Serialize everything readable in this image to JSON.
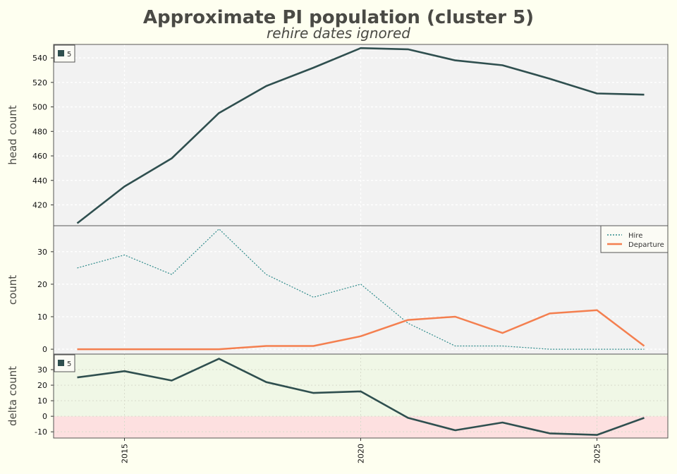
{
  "chart_data": {
    "title": "Approximate PI population (cluster 5)",
    "subtitle": "rehire dates ignored",
    "x": [
      2014,
      2015,
      2016,
      2017,
      2018,
      2019,
      2020,
      2021,
      2022,
      2023,
      2024,
      2025,
      2026
    ],
    "x_ticks": [
      "2015",
      "2020",
      "2025"
    ],
    "xlim": [
      2013.5,
      2026.5
    ],
    "colors": {
      "headcount": "#2f4f4f",
      "hire": "#2e8b8b",
      "departure": "#f47f4f",
      "delta_positive_bg": "#f0f7e6",
      "delta_negative_bg": "#fde0e0",
      "panel_bg": "#f2f2f2",
      "page_bg": "#fefff0"
    },
    "panels": [
      {
        "type": "line",
        "ylabel": "head count",
        "ylim": [
          403,
          551
        ],
        "yticks": [
          420,
          440,
          460,
          480,
          500,
          520,
          540
        ],
        "legend": {
          "position": "top-left",
          "entries": [
            "5"
          ]
        },
        "series": [
          {
            "name": "5",
            "style": "solid",
            "values": [
              405,
              435,
              458,
              495,
              517,
              532,
              548,
              547,
              538,
              534,
              523,
              511,
              510
            ]
          }
        ]
      },
      {
        "type": "line",
        "ylabel": "count",
        "ylim": [
          -1.5,
          38
        ],
        "yticks": [
          0,
          10,
          20,
          30
        ],
        "legend": {
          "position": "top-right",
          "entries": [
            "Hire",
            "Departure"
          ]
        },
        "series": [
          {
            "name": "Hire",
            "style": "dotted",
            "values": [
              25,
              29,
              23,
              37,
              23,
              16,
              20,
              8,
              1,
              1,
              0,
              0,
              0
            ]
          },
          {
            "name": "Departure",
            "style": "solid",
            "values": [
              0,
              0,
              0,
              0,
              1,
              1,
              4,
              9,
              10,
              5,
              11,
              12,
              1
            ]
          }
        ]
      },
      {
        "type": "area-line",
        "ylabel": "delta count",
        "ylim": [
          -14,
          40
        ],
        "yticks": [
          -10,
          0,
          10,
          20,
          30
        ],
        "legend": {
          "position": "top-left",
          "entries": [
            "5"
          ]
        },
        "series": [
          {
            "name": "5",
            "style": "solid",
            "values": [
              25,
              29,
              23,
              37,
              22,
              15,
              16,
              -1,
              -9,
              -4,
              -11,
              -12,
              -1
            ]
          }
        ]
      }
    ],
    "grid": true
  }
}
